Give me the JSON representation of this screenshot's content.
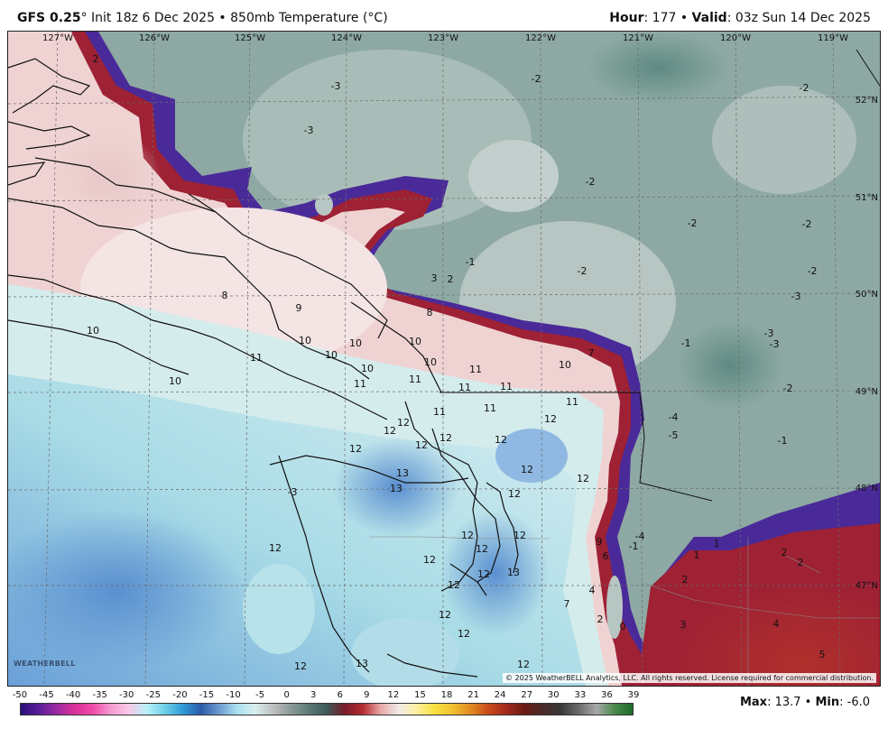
{
  "header": {
    "model": "GFS 0.25",
    "model_deg": "°",
    "init": " Init 18z 6 Dec 2025 • 850mb Temperature (°C)",
    "hour_label": "Hour",
    "hour_value": ": 177 • ",
    "valid_label": "Valid",
    "valid_value": ": 03z Sun 14 Dec 2025"
  },
  "map": {
    "lon_labels": [
      "127°W",
      "126°W",
      "125°W",
      "124°W",
      "123°W",
      "122°W",
      "121°W",
      "120°W",
      "119°W"
    ],
    "lat_labels": [
      "52°N",
      "51°N",
      "50°N",
      "49°N",
      "48°N",
      "47°N"
    ],
    "copyright": "© 2025 WeatherBELL Analytics, LLC. All rights reserved. License required for commercial distribution.",
    "logo": "WEATHERBELL",
    "value_labels": [
      "2",
      "-3",
      "-2",
      "-2",
      "-3",
      "-2",
      "-2",
      "-2",
      "-1",
      "-2",
      "3",
      "2",
      "-2",
      "-3",
      "-3",
      "-3",
      "8",
      "9",
      "8",
      "10",
      "10",
      "10",
      "10",
      "10",
      "7",
      "-1",
      "10",
      "11",
      "10",
      "10",
      "11",
      "11",
      "11",
      "11",
      "11",
      "10",
      "11",
      "-2",
      "11",
      "12",
      "-4",
      "11",
      "12",
      "12",
      "12",
      "12",
      "12",
      "-5",
      "-1",
      "13",
      "13",
      "12",
      "12",
      "12",
      "-3",
      "12",
      "12",
      "12",
      "12",
      "12",
      "-4",
      "-1",
      "9",
      "1",
      "6",
      "1",
      "2",
      "2",
      "12",
      "12",
      "12",
      "13",
      "2",
      "4",
      "7",
      "12",
      "2",
      "0",
      "3",
      "4",
      "12",
      "12",
      "13",
      "12",
      "5"
    ]
  },
  "colorbar": {
    "ticks": [
      "-50",
      "-45",
      "-40",
      "-35",
      "-30",
      "-25",
      "-20",
      "-15",
      "-10",
      "-5",
      "0",
      "3",
      "6",
      "9",
      "12",
      "15",
      "18",
      "21",
      "24",
      "27",
      "30",
      "33",
      "36",
      "39"
    ]
  },
  "stats": {
    "max_label": "Max",
    "max_value": ": 13.7 • ",
    "min_label": "Min",
    "min_value": ": -6.0"
  }
}
